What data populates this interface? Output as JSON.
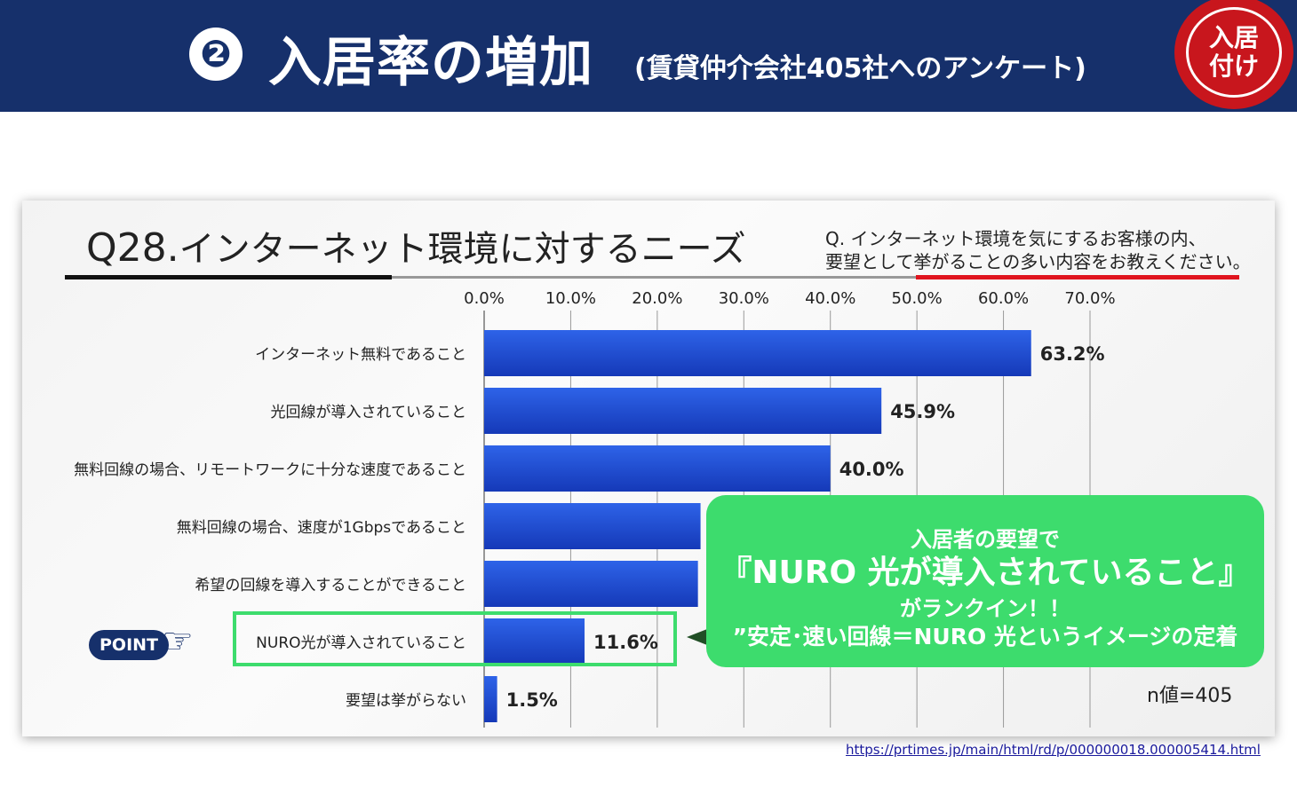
{
  "header": {
    "number": "❷",
    "title": "入居率の増加",
    "subtitle": "(賃貸仲介会社405社へのアンケート)",
    "badge_line1": "入居",
    "badge_line2": "付け",
    "bg_color": "#16306b",
    "badge_color": "#c8161d"
  },
  "question": {
    "label": "Q28.",
    "title": "インターネット環境に対するニーズ",
    "desc_line1": "Q. インターネット環境を気にするお客様の内、",
    "desc_line2": "要望として挙がることの多い内容をお教えください。"
  },
  "chart_data": {
    "type": "bar",
    "orientation": "horizontal",
    "categories": [
      "インターネット無料であること",
      "光回線が導入されていること",
      "無料回線の場合、リモートワークに十分な速度であること",
      "無料回線の場合、速度が1Gbpsであること",
      "希望の回線を導入することができること",
      "NURO光が導入されていること",
      "要望は挙がらない"
    ],
    "values": [
      63.2,
      45.9,
      40.0,
      25.0,
      24.7,
      11.6,
      1.5
    ],
    "data_labels": [
      "63.2%",
      "45.9%",
      "40.0%",
      "",
      "",
      "11.6%",
      "1.5%"
    ],
    "xlim": [
      0,
      70
    ],
    "ticks": [
      "0.0%",
      "10.0%",
      "20.0%",
      "30.0%",
      "40.0%",
      "50.0%",
      "60.0%",
      "70.0%"
    ],
    "grid": true,
    "bar_color": "#1f4fd6",
    "highlight_index": 5
  },
  "callout": {
    "line1": "入居者の要望で",
    "line2": "『NURO 光が導入されていること』",
    "line3": "がランクイン！！",
    "line4": "”安定･速い回線＝NURO 光というイメージの定着",
    "color": "#3ddc6d"
  },
  "point_label": "POINT",
  "hand_icon": "pointing-hand-icon",
  "n_value": "n値=405",
  "source_url": "https://prtimes.jp/main/html/rd/p/000000018.000005414.html"
}
